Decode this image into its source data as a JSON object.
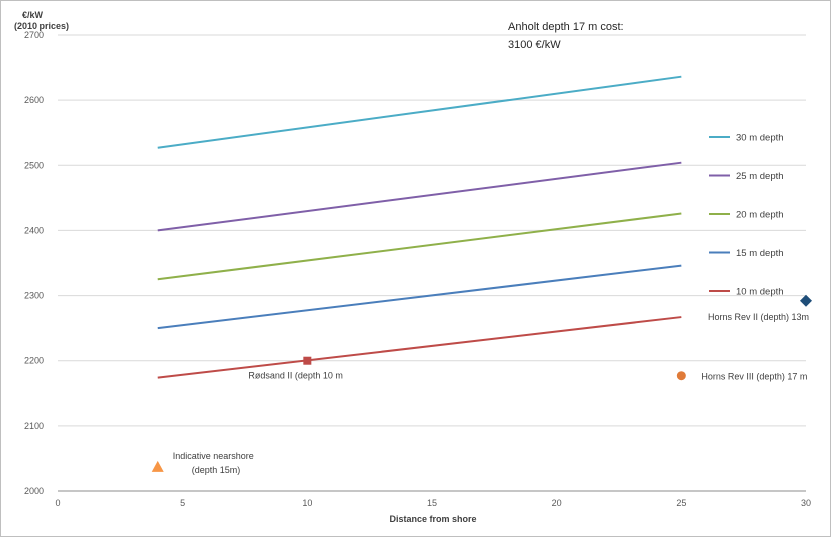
{
  "chart_data": {
    "type": "line",
    "ylabel": "€/kW",
    "ylabel_sub": "(2010 prices)",
    "xlabel": "Distance from shore",
    "xlim": [
      0,
      30
    ],
    "ylim": [
      2000,
      2700
    ],
    "x_ticks": [
      "0",
      "5",
      "10",
      "15",
      "20",
      "25",
      "30"
    ],
    "y_ticks": [
      "2000",
      "2100",
      "2200",
      "2300",
      "2400",
      "2500",
      "2600",
      "2700"
    ],
    "grid": "horizontal",
    "legend_position": "right",
    "series": [
      {
        "name": "30 m depth",
        "color": "#4bacc6",
        "x": [
          4,
          25
        ],
        "y": [
          2527,
          2636
        ]
      },
      {
        "name": "25 m depth",
        "color": "#7f5fa8",
        "x": [
          4,
          25
        ],
        "y": [
          2400,
          2504
        ]
      },
      {
        "name": "20 m depth",
        "color": "#8fb04a",
        "x": [
          4,
          25
        ],
        "y": [
          2325,
          2426
        ]
      },
      {
        "name": "15 m depth",
        "color": "#4a7ebb",
        "x": [
          4,
          25
        ],
        "y": [
          2250,
          2346
        ]
      },
      {
        "name": "10 m depth",
        "color": "#be4b48",
        "x": [
          4,
          25
        ],
        "y": [
          2174,
          2267
        ]
      }
    ],
    "points": [
      {
        "label": "Rødsand II (depth 10 m",
        "x": 10,
        "y": 2200,
        "marker": "square",
        "color": "#be4b48"
      },
      {
        "label": "Horns Rev II (depth) 13m",
        "x": 30,
        "y": 2292,
        "marker": "diamond",
        "color": "#1f4e79"
      },
      {
        "label": "Horns Rev III (depth) 17 m",
        "x": 25,
        "y": 2177,
        "marker": "circle",
        "color": "#e07b39"
      },
      {
        "label": "Indicative nearshore",
        "label2": "(depth 15m)",
        "x": 4,
        "y": 2037,
        "marker": "triangle",
        "color": "#f79646"
      }
    ],
    "note": {
      "line1": "Anholt depth 17 m cost:",
      "line2": "3100 €/kW"
    }
  }
}
